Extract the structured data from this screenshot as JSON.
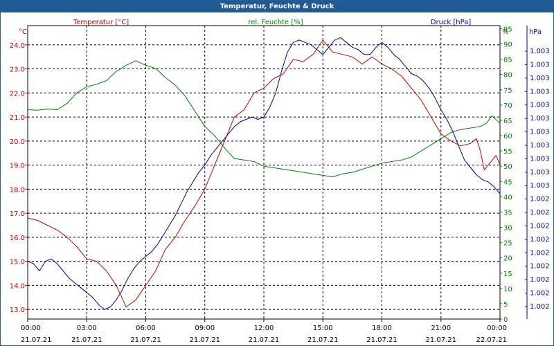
{
  "window": {
    "title": "Temperatur, Feuchte & Druck"
  },
  "chart_data": {
    "type": "line",
    "grid": true,
    "colors": {
      "temperature": "#c00000",
      "humidity": "#008000",
      "pressure": "#00008b"
    },
    "x_axis": {
      "times": [
        "00:00",
        "03:00",
        "06:00",
        "09:00",
        "12:00",
        "15:00",
        "18:00",
        "21:00",
        "00:00"
      ],
      "dates": [
        "21.07.21",
        "21.07.21",
        "21.07.21",
        "21.07.21",
        "21.07.21",
        "21.07.21",
        "21.07.21",
        "21.07.21",
        "22.07.21"
      ],
      "range_hours": [
        0,
        24
      ]
    },
    "axes": {
      "temperature": {
        "unit": "°C",
        "label": "Temperatur [°C]",
        "range": [
          12.6,
          24.8
        ],
        "ticks": [
          "13.0",
          "14.0",
          "15.0",
          "16.0",
          "17.0",
          "18.0",
          "19.0",
          "20.0",
          "21.0",
          "22.0",
          "23.0",
          "24.0"
        ]
      },
      "humidity": {
        "unit": "%",
        "label": "rel. Feuchte [%]",
        "range": [
          0,
          96
        ],
        "ticks": [
          "0",
          "5",
          "10",
          "15",
          "20",
          "25",
          "30",
          "35",
          "40",
          "45",
          "50",
          "55",
          "60",
          "65",
          "70",
          "75",
          "80",
          "85",
          "90",
          "95"
        ]
      },
      "pressure": {
        "unit": "hPa",
        "label": "Druck [hPa]",
        "ticks": [
          "1.002",
          "1.002",
          "1.002",
          "1.002",
          "1.002",
          "1.002",
          "1.002",
          "1.002",
          "1.002",
          "1.003",
          "1.003",
          "1.003",
          "1.003",
          "1.003",
          "1.003",
          "1.003",
          "1.003",
          "1.003",
          "1.003",
          "1.003"
        ]
      }
    },
    "series": [
      {
        "name": "Temperatur [°C]",
        "axis": "temperature",
        "x": [
          0,
          0.5,
          1,
          1.5,
          2,
          2.5,
          3,
          3.5,
          4,
          4.5,
          5,
          5.5,
          6,
          6.5,
          7,
          7.5,
          8,
          8.5,
          9,
          9.5,
          10,
          10.5,
          11,
          11.5,
          12,
          12.5,
          13,
          13.5,
          14,
          14.5,
          15,
          15.5,
          16,
          16.5,
          17,
          17.5,
          18,
          18.5,
          19,
          19.5,
          20,
          20.5,
          21,
          21.5,
          22,
          22.5,
          22.8,
          23,
          23.2,
          23.5,
          23.8,
          24
        ],
        "y": [
          16.8,
          16.7,
          16.5,
          16.3,
          16.0,
          15.6,
          15.1,
          15.0,
          14.6,
          14.0,
          13.1,
          13.4,
          14.0,
          14.6,
          15.5,
          16.0,
          16.7,
          17.3,
          18.0,
          19.0,
          20.0,
          21.0,
          21.3,
          22.0,
          22.2,
          22.6,
          22.8,
          23.4,
          23.3,
          23.6,
          24.2,
          23.7,
          23.6,
          23.5,
          23.2,
          23.5,
          23.2,
          23.0,
          22.7,
          22.2,
          21.7,
          21.0,
          20.3,
          20.0,
          19.8,
          19.9,
          20.1,
          19.6,
          18.8,
          19.1,
          19.4,
          19.0
        ]
      },
      {
        "name": "rel. Feuchte [%]",
        "axis": "humidity",
        "x": [
          0,
          0.5,
          1,
          1.5,
          2,
          2.5,
          3,
          3.5,
          4,
          4.5,
          5,
          5.5,
          6,
          6.5,
          7,
          7.5,
          8,
          8.5,
          9,
          9.5,
          10,
          10.5,
          11,
          11.5,
          12,
          12.5,
          13,
          13.5,
          14,
          14.5,
          15,
          15.5,
          16,
          16.5,
          17,
          17.5,
          18,
          18.5,
          19,
          19.5,
          20,
          20.5,
          21,
          21.5,
          22,
          22.5,
          23,
          23.3,
          23.6,
          24
        ],
        "y": [
          68.5,
          68.3,
          68.7,
          68.5,
          70.5,
          74.0,
          76.0,
          76.8,
          78.0,
          81.0,
          83.0,
          84.5,
          83.0,
          82.0,
          79.0,
          76.5,
          73.0,
          68.0,
          63.0,
          60.0,
          56.0,
          52.5,
          52.0,
          51.5,
          50.0,
          49.5,
          49.0,
          48.5,
          48.0,
          47.5,
          47.0,
          46.5,
          47.5,
          48.0,
          49.0,
          50.0,
          51.0,
          51.5,
          52.0,
          53.0,
          55.0,
          57.0,
          59.0,
          61.0,
          62.0,
          62.5,
          63.0,
          64.0,
          66.5,
          64.0
        ]
      },
      {
        "name": "Druck [hPa]",
        "axis": "pressure",
        "x": [
          0,
          0.3,
          0.6,
          0.9,
          1.2,
          1.5,
          1.8,
          2.1,
          2.4,
          2.7,
          3.0,
          3.3,
          3.6,
          3.9,
          4.2,
          4.5,
          4.8,
          5.1,
          5.4,
          5.7,
          6.0,
          6.3,
          6.6,
          6.9,
          7.2,
          7.5,
          7.8,
          8.1,
          8.4,
          8.7,
          9.0,
          9.3,
          9.6,
          9.9,
          10.2,
          10.5,
          10.8,
          11.1,
          11.4,
          11.7,
          12.0,
          12.3,
          12.6,
          12.9,
          13.2,
          13.5,
          13.8,
          14.1,
          14.4,
          14.7,
          15.0,
          15.3,
          15.6,
          15.9,
          16.2,
          16.5,
          16.8,
          17.1,
          17.4,
          17.7,
          18.0,
          18.3,
          18.6,
          18.9,
          19.2,
          19.5,
          19.8,
          20.1,
          20.4,
          20.7,
          21.0,
          21.3,
          21.6,
          21.9,
          22.2,
          22.5,
          22.8,
          23.1,
          23.4,
          23.7,
          24.0
        ],
        "y": [
          15.0,
          14.9,
          14.6,
          15.0,
          15.1,
          14.9,
          14.6,
          14.3,
          14.1,
          13.9,
          13.7,
          13.5,
          13.2,
          13.0,
          13.1,
          13.4,
          13.8,
          14.3,
          14.7,
          15.0,
          15.2,
          15.4,
          15.7,
          16.1,
          16.5,
          16.9,
          17.4,
          17.9,
          18.3,
          18.7,
          19.0,
          19.4,
          19.7,
          20.0,
          20.3,
          20.6,
          20.8,
          20.9,
          21.0,
          20.9,
          21.0,
          21.4,
          22.0,
          22.9,
          23.7,
          24.1,
          24.2,
          24.1,
          24.0,
          23.8,
          23.6,
          23.9,
          24.2,
          24.3,
          24.1,
          23.9,
          23.8,
          23.6,
          23.6,
          23.9,
          24.1,
          23.9,
          23.6,
          23.4,
          23.1,
          22.8,
          22.7,
          22.5,
          22.2,
          21.8,
          21.3,
          20.9,
          20.4,
          19.8,
          19.2,
          18.9,
          18.6,
          18.4,
          18.3,
          18.1,
          17.8
        ]
      }
    ]
  }
}
